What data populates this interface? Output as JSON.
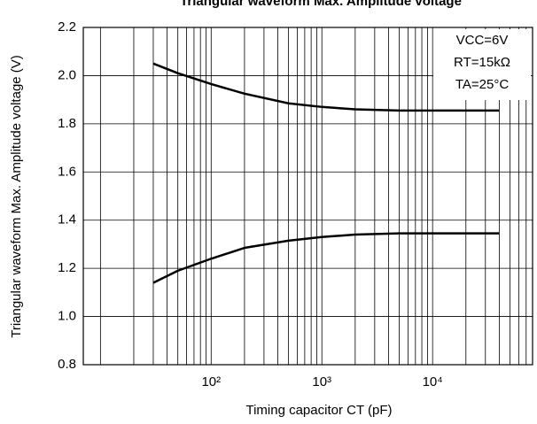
{
  "chart_data": {
    "type": "line",
    "title": "Triangular waveform Max. Amplitude voltage",
    "x_label": "Timing capacitor CT (pF)",
    "y_label": "Triangular waveform Max. Amplitude voltage (V)",
    "annotations": [
      "VCC=6V",
      "RT=15kΩ",
      "TA=25°C"
    ],
    "x": [
      30,
      50,
      100,
      200,
      500,
      1000,
      2000,
      5000,
      10000,
      40000
    ],
    "series": [
      {
        "color": "#000000",
        "values": [
          2.05,
          2.01,
          1.965,
          1.925,
          1.885,
          1.87,
          1.86,
          1.855,
          1.855,
          1.855
        ]
      },
      {
        "color": "#000000",
        "values": [
          1.14,
          1.19,
          1.24,
          1.285,
          1.315,
          1.33,
          1.34,
          1.345,
          1.345,
          1.345
        ]
      }
    ],
    "xlog": true,
    "xlim": [
      7,
      80000
    ],
    "xticks": [
      {
        "value": 100,
        "label": "10²"
      },
      {
        "value": 1000,
        "label": "10³"
      },
      {
        "value": 10000,
        "label": "10⁴"
      }
    ],
    "x_minor_grid": [
      10,
      20,
      30,
      40,
      50,
      60,
      70,
      80,
      90,
      200,
      300,
      400,
      500,
      600,
      700,
      800,
      900,
      2000,
      3000,
      4000,
      5000,
      6000,
      7000,
      8000,
      9000,
      20000,
      30000,
      40000,
      50000,
      60000,
      70000
    ],
    "ylim": [
      0.8,
      2.2
    ],
    "yticks": [
      {
        "value": 0.8,
        "label": "0.8"
      },
      {
        "value": 1.0,
        "label": "1.0"
      },
      {
        "value": 1.2,
        "label": "1.2"
      },
      {
        "value": 1.4,
        "label": "1.4"
      },
      {
        "value": 1.6,
        "label": "1.6"
      },
      {
        "value": 1.8,
        "label": "1.8"
      },
      {
        "value": 2.0,
        "label": "2.0"
      },
      {
        "value": 2.2,
        "label": "2.2"
      }
    ],
    "grid": true
  }
}
